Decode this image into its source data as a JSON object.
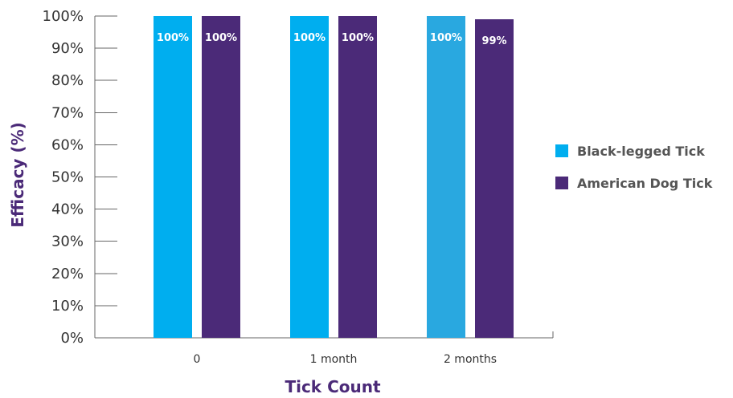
{
  "chart_data": {
    "type": "bar",
    "title": "",
    "xlabel": "Tick Count",
    "ylabel": "Efficacy (%)",
    "categories": [
      "0",
      "1 month",
      "2 months"
    ],
    "ylim": [
      0,
      100
    ],
    "yticks": [
      "0%",
      "10%",
      "20%",
      "30%",
      "40%",
      "50%",
      "60%",
      "70%",
      "80%",
      "90%",
      "100%"
    ],
    "series": [
      {
        "name": "Black-legged Tick",
        "values": [
          100,
          100,
          100
        ],
        "labels": [
          "100%",
          "100%",
          "100%"
        ],
        "color": "#00aeef",
        "point_colors": [
          "#00aeef",
          "#00aeef",
          "#29a8e0"
        ]
      },
      {
        "name": "American Dog Tick",
        "values": [
          100,
          100,
          99
        ],
        "labels": [
          "100%",
          "100%",
          "99%"
        ],
        "color": "#4b2a78"
      }
    ],
    "legend_position": "right",
    "grid": false
  }
}
